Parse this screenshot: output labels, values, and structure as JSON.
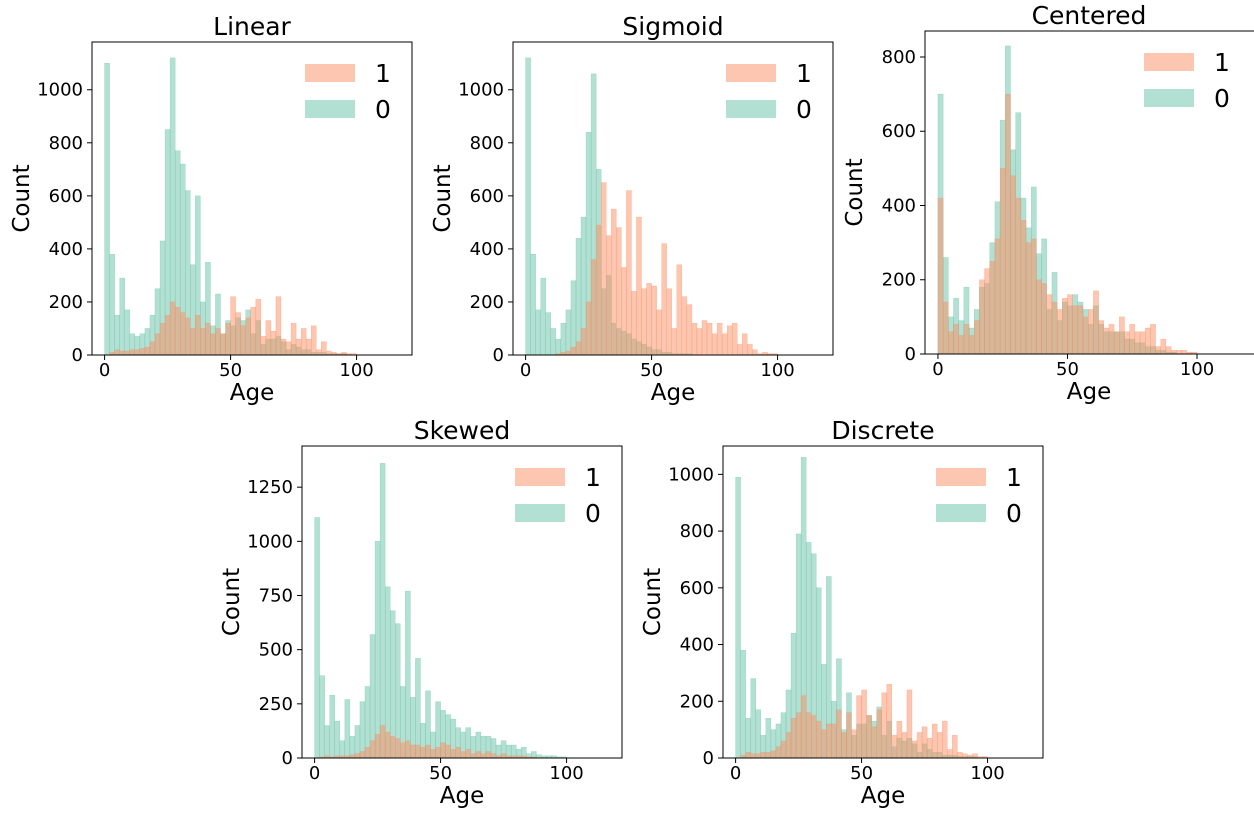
{
  "figure": {
    "columns": 3,
    "rows": 2
  },
  "colors": {
    "class_1": "#fc8d62",
    "class_0": "#66c2a5",
    "bar_opacity": 0.5
  },
  "chart_data": [
    {
      "type": "bar",
      "title": "Linear",
      "xlabel": "Age",
      "ylabel": "Count",
      "xlim": [
        -5,
        122
      ],
      "ylim": [
        0,
        1180
      ],
      "xticks": [
        0,
        50,
        100
      ],
      "yticks": [
        0,
        200,
        400,
        600,
        800,
        1000
      ],
      "legend": {
        "position": "top-right",
        "labels": [
          "1",
          "0"
        ]
      },
      "bin_width": 2,
      "x": [
        1,
        3,
        5,
        7,
        9,
        11,
        13,
        15,
        17,
        19,
        21,
        23,
        25,
        27,
        29,
        31,
        33,
        35,
        37,
        39,
        41,
        43,
        45,
        47,
        49,
        51,
        53,
        55,
        57,
        59,
        61,
        63,
        65,
        67,
        69,
        71,
        73,
        75,
        77,
        79,
        81,
        83,
        85,
        87,
        89,
        91,
        93,
        95,
        97,
        99,
        101,
        103,
        105,
        107,
        109,
        111,
        113,
        115
      ],
      "series": [
        {
          "name": "1",
          "values": [
            0,
            10,
            20,
            15,
            15,
            20,
            20,
            25,
            30,
            50,
            80,
            120,
            150,
            200,
            180,
            160,
            140,
            100,
            150,
            100,
            120,
            80,
            100,
            80,
            120,
            220,
            160,
            110,
            140,
            180,
            210,
            70,
            130,
            90,
            220,
            60,
            50,
            120,
            60,
            100,
            60,
            110,
            20,
            50,
            15,
            10,
            5,
            10,
            5,
            5,
            0,
            0,
            0,
            0,
            0,
            0,
            0,
            0
          ]
        },
        {
          "name": "0",
          "values": [
            1100,
            380,
            150,
            290,
            170,
            80,
            70,
            80,
            100,
            150,
            250,
            430,
            850,
            1120,
            770,
            720,
            620,
            340,
            600,
            200,
            350,
            110,
            230,
            80,
            130,
            110,
            140,
            130,
            170,
            80,
            130,
            40,
            60,
            60,
            70,
            50,
            20,
            40,
            30,
            20,
            20,
            10,
            10,
            10,
            5,
            5,
            5,
            5,
            0,
            0,
            0,
            0,
            0,
            0,
            0,
            0,
            0,
            0
          ]
        }
      ]
    },
    {
      "type": "bar",
      "title": "Sigmoid",
      "xlabel": "Age",
      "ylabel": "Count",
      "xlim": [
        -5,
        122
      ],
      "ylim": [
        0,
        1180
      ],
      "xticks": [
        0,
        50,
        100
      ],
      "yticks": [
        0,
        200,
        400,
        600,
        800,
        1000
      ],
      "legend": {
        "position": "top-right",
        "labels": [
          "1",
          "0"
        ]
      },
      "bin_width": 2,
      "x": [
        1,
        3,
        5,
        7,
        9,
        11,
        13,
        15,
        17,
        19,
        21,
        23,
        25,
        27,
        29,
        31,
        33,
        35,
        37,
        39,
        41,
        43,
        45,
        47,
        49,
        51,
        53,
        55,
        57,
        59,
        61,
        63,
        65,
        67,
        69,
        71,
        73,
        75,
        77,
        79,
        81,
        83,
        85,
        87,
        89,
        91,
        93,
        95,
        97,
        99,
        101,
        103,
        105,
        107,
        109,
        111,
        113,
        115
      ],
      "series": [
        {
          "name": "1",
          "values": [
            0,
            0,
            0,
            0,
            0,
            0,
            5,
            10,
            15,
            30,
            50,
            100,
            200,
            360,
            490,
            650,
            450,
            550,
            480,
            330,
            620,
            240,
            520,
            250,
            270,
            260,
            170,
            420,
            250,
            100,
            340,
            220,
            190,
            120,
            100,
            130,
            120,
            80,
            120,
            80,
            110,
            120,
            40,
            80,
            40,
            20,
            5,
            10,
            5,
            5,
            0,
            0,
            0,
            0,
            0,
            0,
            0,
            0
          ]
        },
        {
          "name": "0",
          "values": [
            1120,
            380,
            170,
            290,
            160,
            100,
            60,
            120,
            170,
            280,
            440,
            520,
            840,
            1060,
            700,
            250,
            300,
            120,
            100,
            90,
            80,
            60,
            50,
            40,
            30,
            20,
            20,
            10,
            10,
            5,
            5,
            5,
            5,
            0,
            0,
            0,
            0,
            0,
            0,
            0,
            0,
            0,
            0,
            0,
            0,
            0,
            0,
            0,
            0,
            0,
            0,
            0,
            0,
            0,
            0,
            0,
            0,
            0
          ]
        }
      ]
    },
    {
      "type": "bar",
      "title": "Centered",
      "xlabel": "Age",
      "ylabel": "Count",
      "xlim": [
        -5,
        122
      ],
      "ylim": [
        0,
        870
      ],
      "xticks": [
        0,
        50,
        100
      ],
      "yticks": [
        0,
        200,
        400,
        600,
        800
      ],
      "legend": {
        "position": "top-right",
        "labels": [
          "1",
          "0"
        ]
      },
      "bin_width": 2,
      "x": [
        1,
        3,
        5,
        7,
        9,
        11,
        13,
        15,
        17,
        19,
        21,
        23,
        25,
        27,
        29,
        31,
        33,
        35,
        37,
        39,
        41,
        43,
        45,
        47,
        49,
        51,
        53,
        55,
        57,
        59,
        61,
        63,
        65,
        67,
        69,
        71,
        73,
        75,
        77,
        79,
        81,
        83,
        85,
        87,
        89,
        91,
        93,
        95,
        97,
        99,
        101,
        103,
        105,
        107,
        109,
        111,
        113,
        115
      ],
      "series": [
        {
          "name": "1",
          "values": [
            420,
            140,
            60,
            80,
            50,
            80,
            50,
            90,
            200,
            230,
            250,
            310,
            500,
            700,
            480,
            420,
            360,
            300,
            310,
            200,
            190,
            160,
            140,
            120,
            150,
            160,
            130,
            130,
            100,
            120,
            170,
            90,
            70,
            80,
            60,
            100,
            60,
            80,
            60,
            60,
            70,
            80,
            20,
            40,
            20,
            10,
            10,
            10,
            5,
            5,
            0,
            0,
            0,
            0,
            0,
            0,
            0,
            0
          ]
        },
        {
          "name": "0",
          "values": [
            700,
            260,
            100,
            150,
            90,
            180,
            70,
            120,
            180,
            190,
            300,
            410,
            630,
            830,
            550,
            650,
            420,
            340,
            450,
            270,
            310,
            120,
            220,
            90,
            140,
            130,
            160,
            140,
            120,
            80,
            130,
            80,
            60,
            60,
            60,
            60,
            40,
            40,
            30,
            30,
            20,
            20,
            10,
            10,
            5,
            5,
            0,
            0,
            0,
            0,
            0,
            0,
            0,
            0,
            0,
            0,
            0,
            0
          ]
        }
      ]
    },
    {
      "type": "bar",
      "title": "Skewed",
      "xlabel": "Age",
      "ylabel": "Count",
      "xlim": [
        -5,
        122
      ],
      "ylim": [
        0,
        1440
      ],
      "xticks": [
        0,
        50,
        100
      ],
      "yticks": [
        0,
        250,
        500,
        750,
        1000,
        1250
      ],
      "legend": {
        "position": "top-right",
        "labels": [
          "1",
          "0"
        ]
      },
      "bin_width": 2,
      "x": [
        1,
        3,
        5,
        7,
        9,
        11,
        13,
        15,
        17,
        19,
        21,
        23,
        25,
        27,
        29,
        31,
        33,
        35,
        37,
        39,
        41,
        43,
        45,
        47,
        49,
        51,
        53,
        55,
        57,
        59,
        61,
        63,
        65,
        67,
        69,
        71,
        73,
        75,
        77,
        79,
        81,
        83,
        85,
        87,
        89,
        91,
        93,
        95,
        97,
        99,
        101,
        103,
        105,
        107,
        109,
        111,
        113,
        115
      ],
      "series": [
        {
          "name": "1",
          "values": [
            0,
            5,
            10,
            5,
            10,
            10,
            10,
            15,
            20,
            30,
            50,
            80,
            110,
            150,
            120,
            100,
            90,
            70,
            80,
            60,
            60,
            50,
            60,
            40,
            50,
            70,
            60,
            40,
            50,
            30,
            40,
            20,
            30,
            20,
            30,
            20,
            10,
            20,
            10,
            10,
            10,
            10,
            5,
            5,
            0,
            0,
            0,
            0,
            0,
            0,
            0,
            0,
            0,
            0,
            0,
            0,
            0,
            0
          ]
        },
        {
          "name": "0",
          "values": [
            1110,
            380,
            150,
            290,
            170,
            80,
            270,
            100,
            150,
            260,
            330,
            570,
            1000,
            1360,
            790,
            680,
            620,
            330,
            770,
            280,
            460,
            160,
            310,
            120,
            260,
            220,
            200,
            180,
            140,
            120,
            140,
            100,
            120,
            100,
            100,
            90,
            60,
            80,
            60,
            60,
            40,
            50,
            20,
            30,
            15,
            10,
            10,
            10,
            5,
            5,
            0,
            0,
            0,
            0,
            0,
            0,
            0,
            0
          ]
        }
      ]
    },
    {
      "type": "bar",
      "title": "Discrete",
      "xlabel": "Age",
      "ylabel": "Count",
      "xlim": [
        -5,
        122
      ],
      "ylim": [
        0,
        1100
      ],
      "xticks": [
        0,
        50,
        100
      ],
      "yticks": [
        0,
        200,
        400,
        600,
        800,
        1000
      ],
      "legend": {
        "position": "top-right",
        "labels": [
          "1",
          "0"
        ]
      },
      "bin_width": 2,
      "x": [
        1,
        3,
        5,
        7,
        9,
        11,
        13,
        15,
        17,
        19,
        21,
        23,
        25,
        27,
        29,
        31,
        33,
        35,
        37,
        39,
        41,
        43,
        45,
        47,
        49,
        51,
        53,
        55,
        57,
        59,
        61,
        63,
        65,
        67,
        69,
        71,
        73,
        75,
        77,
        79,
        81,
        83,
        85,
        87,
        89,
        91,
        93,
        95,
        97,
        99,
        101,
        103,
        105,
        107,
        109,
        111,
        113,
        115
      ],
      "series": [
        {
          "name": "1",
          "values": [
            0,
            10,
            20,
            15,
            15,
            20,
            20,
            25,
            40,
            60,
            90,
            140,
            160,
            220,
            160,
            150,
            130,
            100,
            120,
            120,
            170,
            90,
            160,
            100,
            220,
            240,
            150,
            110,
            170,
            230,
            260,
            80,
            130,
            90,
            240,
            60,
            90,
            110,
            70,
            120,
            90,
            130,
            30,
            80,
            20,
            15,
            10,
            15,
            5,
            5,
            0,
            0,
            0,
            0,
            0,
            0,
            0,
            0
          ]
        },
        {
          "name": "0",
          "values": [
            990,
            380,
            140,
            280,
            170,
            80,
            140,
            100,
            120,
            160,
            240,
            440,
            790,
            1060,
            760,
            720,
            600,
            330,
            640,
            200,
            350,
            100,
            230,
            80,
            120,
            120,
            150,
            130,
            180,
            80,
            130,
            40,
            70,
            60,
            70,
            50,
            20,
            50,
            30,
            20,
            20,
            10,
            10,
            10,
            5,
            5,
            5,
            5,
            0,
            0,
            0,
            0,
            0,
            0,
            0,
            0,
            0,
            0
          ]
        }
      ]
    }
  ]
}
